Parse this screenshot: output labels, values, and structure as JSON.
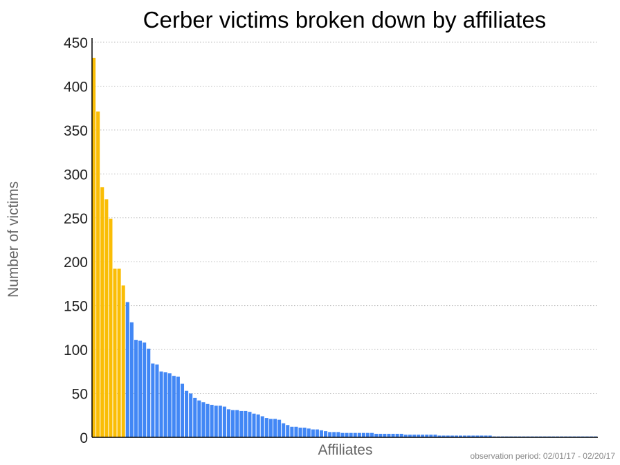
{
  "colors": {
    "top_affiliates": "#FABD05",
    "other_affiliates": "#4287F5",
    "grid": "#bbbbbb",
    "axis_label": "#666666",
    "footnote": "#888888"
  },
  "chart_data": {
    "type": "bar",
    "title": "Cerber victims broken down by affiliates",
    "xlabel": "Affiliates",
    "ylabel": "Number of victims",
    "footnote": "observation period: 02/01/17 - 02/20/17",
    "ylim": [
      0,
      450
    ],
    "y_ticks": [
      0,
      50,
      100,
      150,
      200,
      250,
      300,
      350,
      400,
      450
    ],
    "grid": true,
    "highlight_count": 8,
    "values": [
      432,
      371,
      285,
      271,
      249,
      192,
      192,
      173,
      154,
      131,
      111,
      110,
      108,
      101,
      84,
      83,
      75,
      74,
      73,
      70,
      69,
      61,
      53,
      50,
      45,
      42,
      40,
      38,
      37,
      36,
      36,
      35,
      32,
      31,
      31,
      30,
      30,
      29,
      27,
      26,
      24,
      22,
      21,
      21,
      20,
      16,
      14,
      12,
      12,
      11,
      11,
      10,
      9,
      9,
      8,
      7,
      6,
      6,
      6,
      5,
      5,
      5,
      5,
      5,
      5,
      5,
      5,
      4,
      4,
      4,
      4,
      4,
      4,
      4,
      3,
      3,
      3,
      3,
      3,
      3,
      3,
      3,
      2,
      2,
      2,
      2,
      2,
      2,
      2,
      2,
      2,
      2,
      2,
      2,
      2,
      1,
      1,
      1,
      1,
      1,
      1,
      1,
      1,
      1,
      1,
      1,
      1,
      1,
      1,
      1,
      1,
      1,
      1,
      1,
      1,
      1,
      1,
      1,
      1,
      1
    ]
  }
}
